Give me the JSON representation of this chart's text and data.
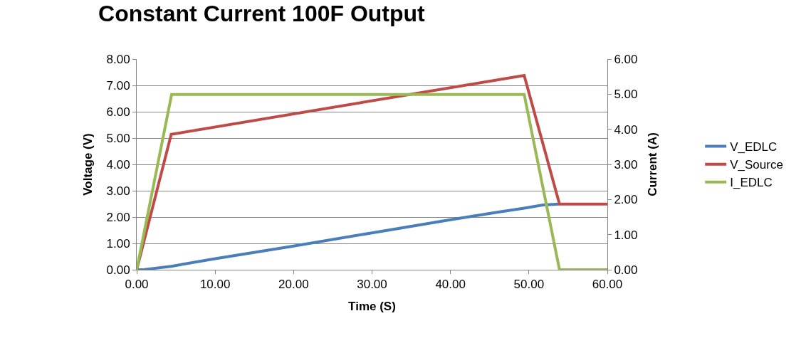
{
  "chart_data": {
    "type": "line",
    "title": "Constant Current 100F Output",
    "xlabel": "Time (S)",
    "ylabel": "Voltage (V)",
    "y2label": "Current (A)",
    "series": [
      {
        "name": "V_EDLC",
        "color": "#4a7ebb",
        "x": [
          0,
          1,
          4.4,
          10,
          20,
          30,
          40,
          46.1,
          49.4,
          51.8,
          53.8
        ],
        "values": [
          0,
          0.01,
          0.13,
          0.42,
          0.9,
          1.4,
          1.9,
          2.19,
          2.34,
          2.46,
          2.49
        ]
      },
      {
        "name": "V_Source",
        "color": "#be4b48",
        "x": [
          0,
          4.4,
          49.4,
          53.9,
          60
        ],
        "values": [
          0,
          5.14,
          7.38,
          2.49,
          2.49
        ]
      },
      {
        "name": "I_EDLC",
        "color": "#98b954",
        "axis": "y2",
        "x": [
          0,
          4.45,
          49.4,
          53.9,
          60
        ],
        "values": [
          0,
          4.99,
          4.99,
          0,
          0
        ]
      }
    ],
    "xlim": [
      0,
      60
    ],
    "xticks": [
      {
        "value": 0,
        "label": "0.00"
      },
      {
        "value": 10,
        "label": "10.00"
      },
      {
        "value": 20,
        "label": "20.00"
      },
      {
        "value": 30,
        "label": "30.00"
      },
      {
        "value": 40,
        "label": "40.00"
      },
      {
        "value": 50,
        "label": "50.00"
      },
      {
        "value": 60,
        "label": "60.00"
      }
    ],
    "ylim": [
      0,
      8
    ],
    "yticks": [
      {
        "value": 0,
        "label": "0.00"
      },
      {
        "value": 1,
        "label": "1.00"
      },
      {
        "value": 2,
        "label": "2.00"
      },
      {
        "value": 3,
        "label": "3.00"
      },
      {
        "value": 4,
        "label": "4.00"
      },
      {
        "value": 5,
        "label": "5.00"
      },
      {
        "value": 6,
        "label": "6.00"
      },
      {
        "value": 7,
        "label": "7.00"
      },
      {
        "value": 8,
        "label": "8.00"
      }
    ],
    "y2lim": [
      0,
      6
    ],
    "y2ticks": [
      {
        "value": 0,
        "label": "0.00"
      },
      {
        "value": 1,
        "label": "1.00"
      },
      {
        "value": 2,
        "label": "2.00"
      },
      {
        "value": 3,
        "label": "3.00"
      },
      {
        "value": 4,
        "label": "4.00"
      },
      {
        "value": 5,
        "label": "5.00"
      },
      {
        "value": 6,
        "label": "6.00"
      }
    ],
    "grid": "y",
    "legend": "right",
    "marker": "none",
    "line_style": "solid"
  }
}
